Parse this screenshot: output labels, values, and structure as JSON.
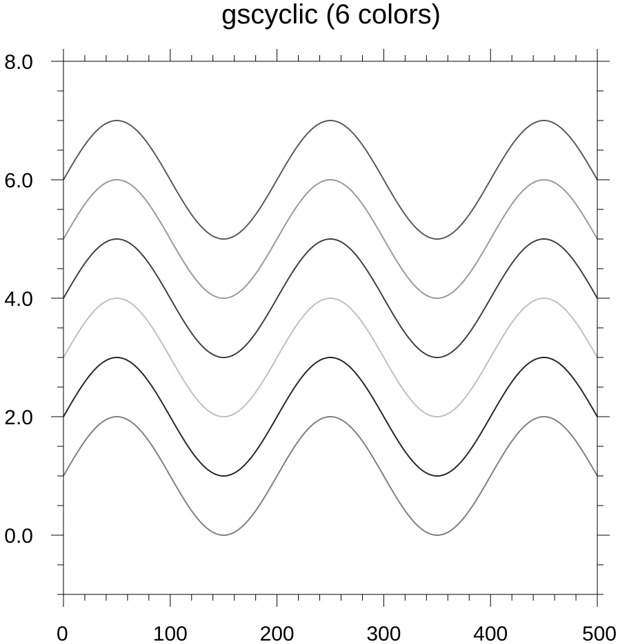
{
  "chart_data": {
    "type": "line",
    "title": "gscyclic (6 colors)",
    "xlabel": "",
    "ylabel": "",
    "xlim": [
      0,
      500
    ],
    "ylim": [
      -1,
      8
    ],
    "x_major_ticks": [
      0,
      100,
      200,
      300,
      400,
      500
    ],
    "x_tick_labels": [
      "0",
      "100",
      "200",
      "300",
      "400",
      "500"
    ],
    "x_minor_step": 20,
    "y_major_ticks": [
      0,
      2,
      4,
      6,
      8
    ],
    "y_tick_labels": [
      "0.0",
      "2.0",
      "4.0",
      "6.0",
      "8.0"
    ],
    "y_minor_step": 0.5,
    "grid": false,
    "curve": "y = offset + sin(2*pi*x/200)",
    "series": [
      {
        "offset": 1,
        "color": "#7f7f7f"
      },
      {
        "offset": 2,
        "color": "#262626"
      },
      {
        "offset": 3,
        "color": "#bfbfbf"
      },
      {
        "offset": 4,
        "color": "#3f3f3f"
      },
      {
        "offset": 5,
        "color": "#999999"
      },
      {
        "offset": 6,
        "color": "#595959"
      }
    ]
  }
}
